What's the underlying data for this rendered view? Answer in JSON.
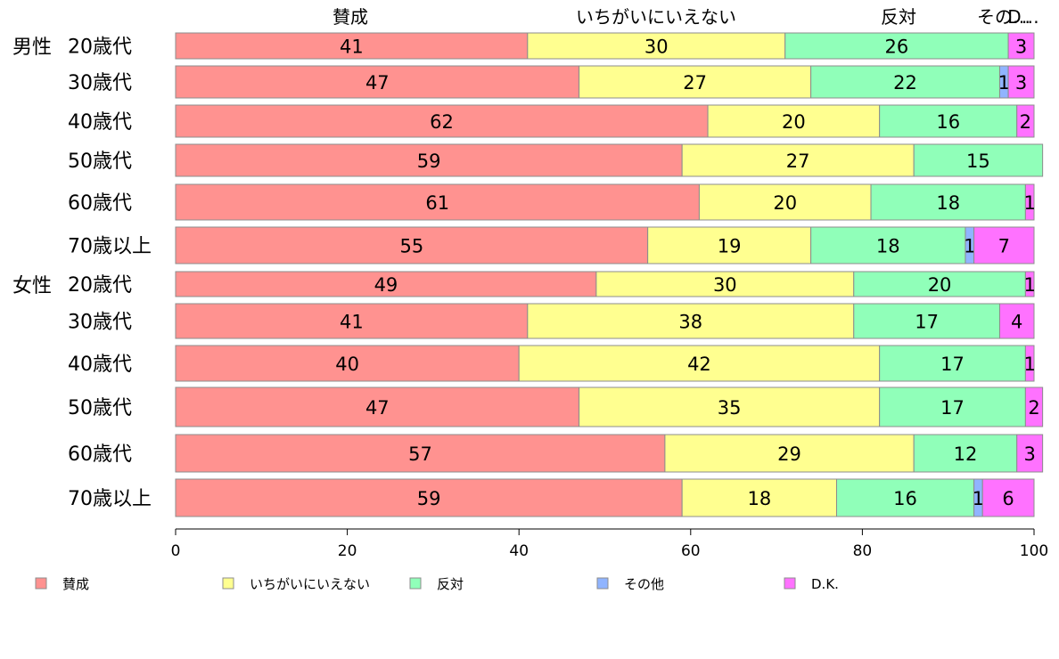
{
  "chart_data": {
    "type": "bar",
    "orientation": "horizontal",
    "stacked": true,
    "group_labels": [
      "男性",
      "女性"
    ],
    "categories": [
      "20歳代",
      "30歳代",
      "40歳代",
      "50歳代",
      "60歳代",
      "70歳以上",
      "20歳代",
      "30歳代",
      "40歳代",
      "50歳代",
      "60歳代",
      "70歳以上"
    ],
    "series": [
      {
        "name": "賛成",
        "color": "#ff9290",
        "values": [
          41,
          47,
          62,
          59,
          61,
          55,
          49,
          41,
          40,
          47,
          57,
          59
        ]
      },
      {
        "name": "いちがいにいえない",
        "color": "#ffff90",
        "values": [
          30,
          27,
          20,
          27,
          20,
          19,
          30,
          38,
          42,
          35,
          29,
          18
        ]
      },
      {
        "name": "反対",
        "color": "#90ffb9",
        "values": [
          26,
          22,
          16,
          15,
          18,
          18,
          20,
          17,
          17,
          17,
          12,
          16
        ]
      },
      {
        "name": "その他",
        "color": "#90b4ff",
        "values": [
          0,
          1,
          0,
          0,
          0,
          1,
          0,
          0,
          0,
          0,
          0,
          1
        ]
      },
      {
        "name": "D.K.",
        "color": "#ff72ff",
        "values": [
          3,
          3,
          2,
          0,
          1,
          7,
          1,
          4,
          1,
          2,
          3,
          6
        ]
      }
    ],
    "top_labels": [
      "賛成",
      "いちがいにいえない",
      "反対",
      "その…",
      "D…"
    ],
    "xlim": [
      0,
      100
    ],
    "xticks": [
      "0",
      "20",
      "40",
      "60",
      "80",
      "100"
    ],
    "grid": false,
    "legend_position": "bottom"
  }
}
